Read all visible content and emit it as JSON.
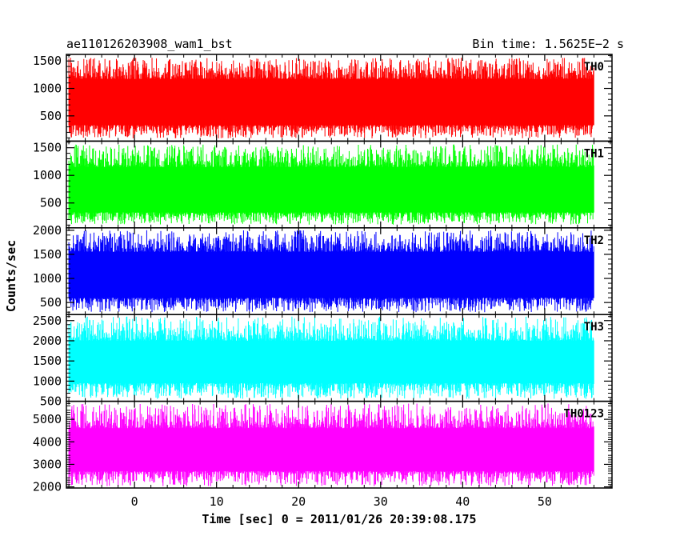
{
  "header": {
    "title": "ae110126203908_wam1_bst",
    "bin_time": "Bin time: 1.5625E−2 s"
  },
  "chart_data": {
    "type": "line",
    "title": "ae110126203908_wam1_bst",
    "subtitle": "Bin time: 1.5625E−2 s",
    "xlabel": "Time [sec] 0 = 2011/01/26 20:39:08.175",
    "ylabel": "Counts/sec",
    "xlim": [
      -8.3,
      58.2
    ],
    "x_data_range": [
      -8.0,
      56.0
    ],
    "x_ticks": [
      0,
      10,
      20,
      30,
      40,
      50
    ],
    "x_tick_labels": [
      "0",
      "10",
      "20",
      "30",
      "40",
      "50"
    ],
    "grid": false,
    "panels": [
      {
        "name": "TH0",
        "color": "#ff0000",
        "ylim": [
          40,
          1620
        ],
        "y_ticks": [
          500,
          1000,
          1500
        ],
        "y_tick_labels": [
          "500",
          "1000",
          "1500"
        ],
        "band_low": 330,
        "band_high": 1170,
        "spike_max": 1560,
        "dip_min": 90
      },
      {
        "name": "TH1",
        "color": "#00ff00",
        "ylim": [
          50,
          1620
        ],
        "y_ticks": [
          500,
          1000,
          1500
        ],
        "y_tick_labels": [
          "500",
          "1000",
          "1500"
        ],
        "band_low": 330,
        "band_high": 1150,
        "spike_max": 1560,
        "dip_min": 110
      },
      {
        "name": "TH2",
        "color": "#0000ff",
        "ylim": [
          250,
          2050
        ],
        "y_ticks": [
          500,
          1000,
          1500,
          2000
        ],
        "y_tick_labels": [
          "500",
          "1000",
          "1500",
          "2000"
        ],
        "band_low": 600,
        "band_high": 1550,
        "spike_max": 2000,
        "dip_min": 300
      },
      {
        "name": "TH3",
        "color": "#00ffff",
        "ylim": [
          500,
          2650
        ],
        "y_ticks": [
          500,
          1000,
          1500,
          2000,
          2500
        ],
        "y_tick_labels": [
          "500",
          "1000",
          "1500",
          "2000",
          "2500"
        ],
        "band_low": 950,
        "band_high": 2000,
        "spike_max": 2600,
        "dip_min": 560
      },
      {
        "name": "TH0123",
        "color": "#ff00ff",
        "ylim": [
          1950,
          5800
        ],
        "y_ticks": [
          2000,
          3000,
          4000,
          5000
        ],
        "y_tick_labels": [
          "2000",
          "3000",
          "4000",
          "5000"
        ],
        "band_low": 2700,
        "band_high": 4600,
        "spike_max": 5700,
        "dip_min": 2030
      }
    ]
  }
}
